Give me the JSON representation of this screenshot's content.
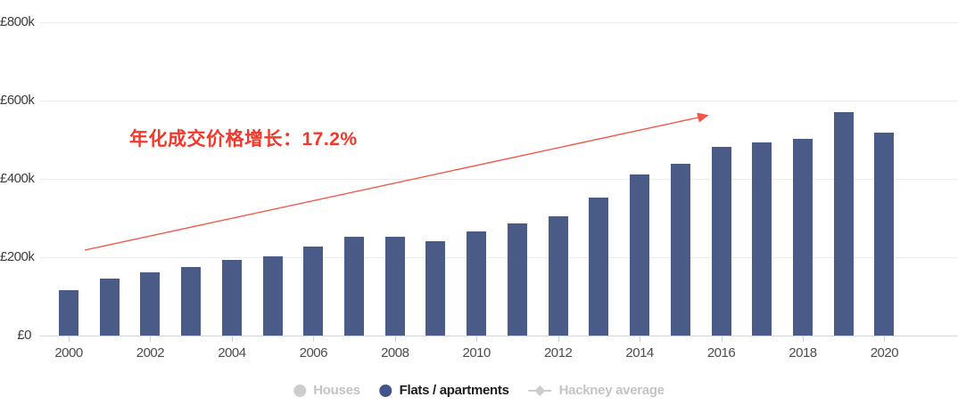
{
  "chart_data": {
    "type": "bar",
    "title": "",
    "xlabel": "",
    "ylabel": "",
    "x": [
      2000,
      2001,
      2002,
      2003,
      2004,
      2005,
      2006,
      2007,
      2008,
      2009,
      2010,
      2011,
      2012,
      2013,
      2014,
      2015,
      2016,
      2017,
      2018,
      2019,
      2020
    ],
    "series": [
      {
        "name": "Flats / apartments",
        "unit": "£k",
        "values": [
          116,
          145,
          162,
          175,
          193,
          203,
          228,
          252,
          253,
          241,
          266,
          286,
          305,
          352,
          412,
          438,
          481,
          494,
          503,
          571,
          519
        ]
      }
    ],
    "ylim": [
      0,
      800
    ],
    "y_ticks": [
      {
        "label": "£0",
        "value": 0
      },
      {
        "label": "£200k",
        "value": 200
      },
      {
        "label": "£400k",
        "value": 400
      },
      {
        "label": "£600k",
        "value": 600
      },
      {
        "label": "£800k",
        "value": 800
      }
    ],
    "x_tick_labels": [
      "2000",
      "2002",
      "2004",
      "2006",
      "2008",
      "2010",
      "2012",
      "2014",
      "2016",
      "2018",
      "2020"
    ],
    "grid": true,
    "legend_position": "bottom",
    "annotation": {
      "text": "年化成交价格增长：17.2%"
    }
  },
  "legend": {
    "items": [
      {
        "label": "Houses",
        "marker": "circle",
        "active": false
      },
      {
        "label": "Flats / apartments",
        "marker": "circle",
        "active": true
      },
      {
        "label": "Hackney average",
        "marker": "line-diamond",
        "active": false
      }
    ]
  },
  "colors": {
    "bar": "#4b5b87",
    "legend_active_marker": "#44548c",
    "legend_active_text": "#1c1c1c",
    "legend_inactive_marker": "#cdcdcd",
    "legend_inactive_text": "#c4c4c4",
    "annotation_text": "#f2382a",
    "arrow": "#f5564a",
    "gridline": "#ebebeb",
    "axis_line": "#ccd3ea"
  }
}
